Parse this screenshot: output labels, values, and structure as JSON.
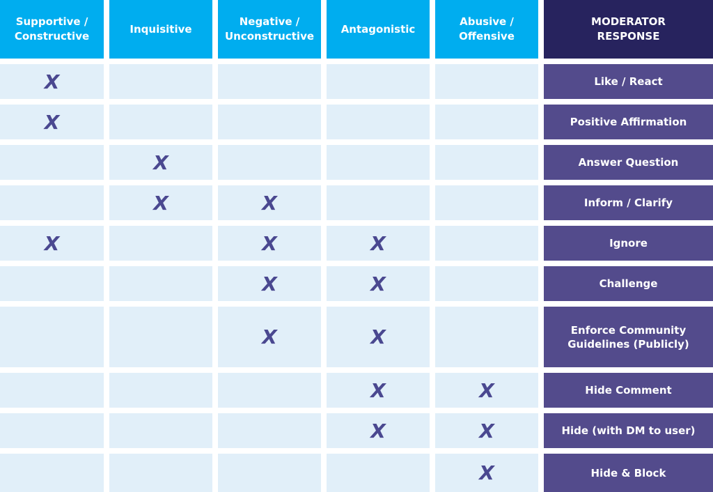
{
  "table": {
    "headers": [
      "Supportive / Constructive",
      "Inquisitive",
      "Negative / Unconstructive",
      "Antagonistic",
      "Abusive / Offensive",
      "MODERATOR RESPONSE"
    ],
    "rows": [
      {
        "marks": [
          "X",
          null,
          null,
          null,
          null
        ],
        "response": "Like / React"
      },
      {
        "marks": [
          "X",
          null,
          null,
          null,
          null
        ],
        "response": "Positive Affirmation"
      },
      {
        "marks": [
          null,
          "X",
          null,
          null,
          null
        ],
        "response": "Answer Question"
      },
      {
        "marks": [
          null,
          "X",
          "X",
          null,
          null
        ],
        "response": "Inform / Clarify"
      },
      {
        "marks": [
          "X",
          null,
          "X",
          "X",
          null
        ],
        "response": "Ignore"
      },
      {
        "marks": [
          null,
          null,
          "X",
          "X",
          null
        ],
        "response": "Challenge"
      },
      {
        "marks": [
          null,
          null,
          "X",
          "X",
          null
        ],
        "response": "Enforce Community Guidelines (Publicly)"
      },
      {
        "marks": [
          null,
          null,
          null,
          "X",
          "X"
        ],
        "response": "Hide Comment"
      },
      {
        "marks": [
          null,
          null,
          null,
          "X",
          "X"
        ],
        "response": "Hide (with DM to user)"
      },
      {
        "marks": [
          null,
          null,
          null,
          null,
          "X"
        ],
        "response": "Hide & Block"
      }
    ]
  }
}
